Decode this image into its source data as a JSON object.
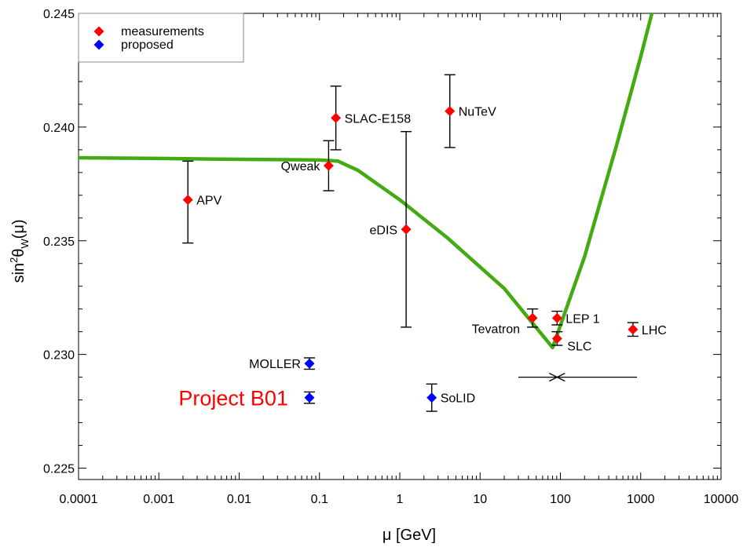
{
  "chart_data": {
    "type": "scatter",
    "xscale": "log",
    "xlim": [
      0.0001,
      10000
    ],
    "ylim": [
      0.2245,
      0.245
    ],
    "xlabel": "μ [GeV]",
    "ylabel": "sin²θW(μ)",
    "grid": false,
    "legend_position": "top-left",
    "x_ticks": [
      {
        "v": 0.0001,
        "label": "0.0001"
      },
      {
        "v": 0.001,
        "label": "0.001"
      },
      {
        "v": 0.01,
        "label": "0.01"
      },
      {
        "v": 0.1,
        "label": "0.1"
      },
      {
        "v": 1,
        "label": "1"
      },
      {
        "v": 10,
        "label": "10"
      },
      {
        "v": 100,
        "label": "100"
      },
      {
        "v": 1000,
        "label": "1000"
      },
      {
        "v": 10000,
        "label": "10000"
      }
    ],
    "y_ticks": [
      {
        "v": 0.225,
        "label": "0.225"
      },
      {
        "v": 0.23,
        "label": "0.230"
      },
      {
        "v": 0.235,
        "label": "0.235"
      },
      {
        "v": 0.24,
        "label": "0.240"
      },
      {
        "v": 0.245,
        "label": "0.245"
      }
    ],
    "legend": [
      {
        "label": "measurements",
        "color": "#ff0000"
      },
      {
        "label": "proposed",
        "color": "#0000ff"
      }
    ],
    "colors": {
      "measurement": "#ff0000",
      "proposed": "#0000ff",
      "curve": "#44aa11",
      "annotation": "#ff0000"
    },
    "running_curve": {
      "x": [
        0.0001,
        0.001,
        0.01,
        0.1,
        0.17,
        0.3,
        1,
        4,
        20,
        80,
        200,
        500,
        1000,
        1400
      ],
      "y": [
        0.23865,
        0.23862,
        0.23858,
        0.23855,
        0.2385,
        0.2381,
        0.2368,
        0.2351,
        0.2329,
        0.2303,
        0.2343,
        0.2392,
        0.2431,
        0.2451
      ]
    },
    "series": [
      {
        "name": "measurements",
        "points": [
          {
            "label": "APV",
            "x": 0.0023,
            "y": 0.2368,
            "err_lo": 0.0019,
            "err_hi": 0.0017,
            "label_side": "right"
          },
          {
            "label": "Qweak",
            "x": 0.13,
            "y": 0.2383,
            "err_lo": 0.0011,
            "err_hi": 0.0011,
            "label_side": "left"
          },
          {
            "label": "SLAC-E158",
            "x": 0.16,
            "y": 0.2404,
            "err_lo": 0.0014,
            "err_hi": 0.0014,
            "label_side": "right"
          },
          {
            "label": "eDIS",
            "x": 1.2,
            "y": 0.2355,
            "err_lo": 0.0043,
            "err_hi": 0.0043,
            "label_side": "left"
          },
          {
            "label": "NuTeV",
            "x": 4.2,
            "y": 0.2407,
            "err_lo": 0.0016,
            "err_hi": 0.0016,
            "label_side": "right"
          },
          {
            "label": "Tevatron",
            "x": 45,
            "y": 0.2316,
            "err_lo": 0.0004,
            "err_hi": 0.0004,
            "label_side": "left-below"
          },
          {
            "label": "LEP 1",
            "x": 91,
            "y": 0.2316,
            "err_lo": 0.0003,
            "err_hi": 0.0003,
            "label_side": "right"
          },
          {
            "label": "SLC",
            "x": 91,
            "y": 0.2307,
            "err_lo": 0.0003,
            "err_hi": 0.0003,
            "label_side": "right-below"
          },
          {
            "label": "LHC",
            "x": 800,
            "y": 0.2311,
            "err_lo": 0.0003,
            "err_hi": 0.0003,
            "label_side": "right"
          }
        ]
      },
      {
        "name": "proposed",
        "points": [
          {
            "label": "MOLLER",
            "x": 0.075,
            "y": 0.2296,
            "err_lo": 0.00025,
            "err_hi": 0.00025,
            "label_side": "left"
          },
          {
            "label": "",
            "x": 0.075,
            "y": 0.2281,
            "err_lo": 0.00025,
            "err_hi": 0.00025,
            "label_side": "none"
          },
          {
            "label": "SoLID",
            "x": 2.5,
            "y": 0.2281,
            "err_lo": 0.0006,
            "err_hi": 0.0006,
            "label_side": "right"
          }
        ]
      }
    ],
    "mass_marker": {
      "y": 0.229,
      "x_center": 91,
      "x_from": 30,
      "x_to": 900
    },
    "annotation": {
      "text": "Project B01",
      "x": 0.075,
      "y": 0.2281
    }
  }
}
